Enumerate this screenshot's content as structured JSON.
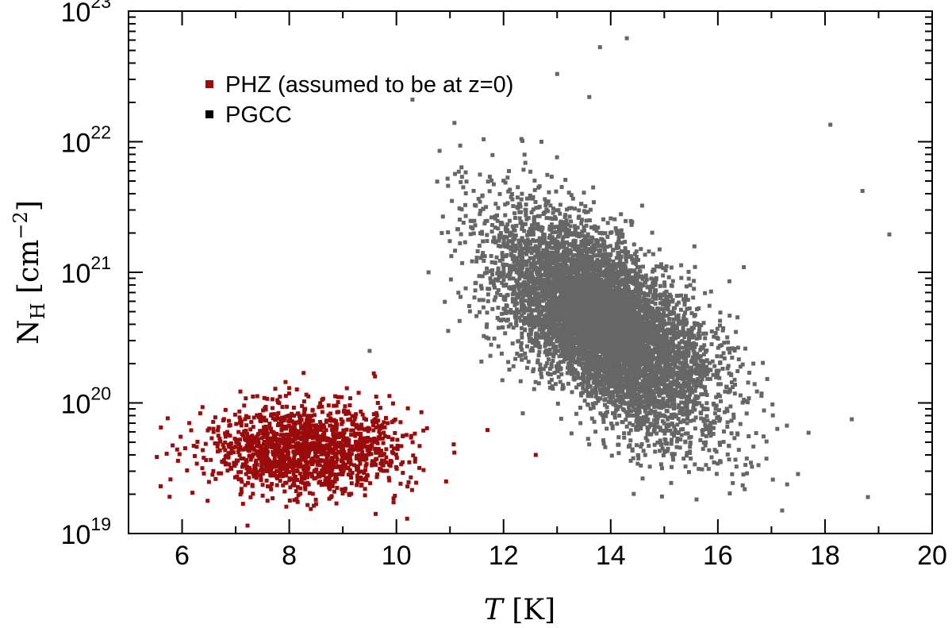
{
  "chart_data": {
    "type": "scatter",
    "xlabel": {
      "var": "T",
      "unit": "[K]"
    },
    "ylabel": {
      "base": "N",
      "sub": "H",
      "unit_pre": "[cm",
      "unit_sup": "−2",
      "unit_post": "]"
    },
    "xlim": [
      5,
      20
    ],
    "ylim": [
      1e+19,
      1e+23
    ],
    "yscale": "log",
    "x_ticks": [
      "6",
      "8",
      "10",
      "12",
      "14",
      "16",
      "18",
      "20"
    ],
    "y_ticks": [
      {
        "base": "10",
        "exp": "19"
      },
      {
        "base": "10",
        "exp": "20"
      },
      {
        "base": "10",
        "exp": "21"
      },
      {
        "base": "10",
        "exp": "22"
      },
      {
        "base": "10",
        "exp": "23"
      }
    ],
    "legend_position": "top-left",
    "series": [
      {
        "name": "PHZ (assumed to be at z=0)",
        "color": "#9a0b0b",
        "count": 1500,
        "distribution": {
          "x_mean": 8.3,
          "x_sd": 0.9,
          "log_y_mean": 19.65,
          "log_y_sd": 0.17,
          "x_range": [
            5.5,
            11.9
          ]
        },
        "points": [
          [
            8.0,
            1.3e+20
          ],
          [
            5.6,
            2.3e+19
          ],
          [
            12.6,
            4e+19
          ],
          [
            11.7,
            6.2e+19
          ],
          [
            10.2,
            1.3e+19
          ]
        ]
      },
      {
        "name": "PGCC",
        "color": "#666666",
        "count": 7000,
        "distribution": {
          "x_mean": 13.9,
          "x_sd": 1.0,
          "log_y_mean": 20.6,
          "log_y_sd": 0.4,
          "rho": -0.6,
          "x_range": [
            10.6,
            19.5
          ]
        },
        "points": [
          [
            14.3,
            6.2e+22
          ],
          [
            13.8,
            5.3e+22
          ],
          [
            13.0,
            3.3e+22
          ],
          [
            13.6,
            2.2e+22
          ],
          [
            10.3,
            2.1e+22
          ],
          [
            18.1,
            1.35e+22
          ],
          [
            18.7,
            4.2e+21
          ],
          [
            19.2,
            1.95e+21
          ],
          [
            18.8,
            1.9e+19
          ],
          [
            17.2,
            1.5e+19
          ],
          [
            10.6,
            1e+21
          ],
          [
            9.5,
            2.5e+20
          ],
          [
            18.5,
            7.5e+19
          ]
        ]
      }
    ]
  }
}
